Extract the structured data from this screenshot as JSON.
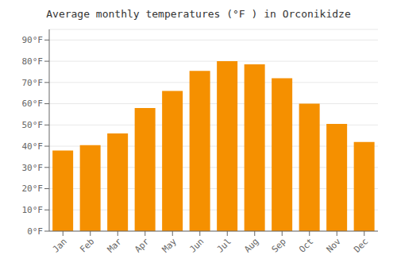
{
  "chart_data": {
    "type": "bar",
    "title": "Average monthly temperatures (°F ) in Orconikidze",
    "categories": [
      "Jan",
      "Feb",
      "Mar",
      "Apr",
      "May",
      "Jun",
      "Jul",
      "Aug",
      "Sep",
      "Oct",
      "Nov",
      "Dec"
    ],
    "values": [
      38,
      40.5,
      46,
      58,
      66,
      75.5,
      80,
      78.5,
      72,
      60,
      50.5,
      42
    ],
    "color": "#F59000",
    "ylim": [
      0,
      95
    ],
    "yticks": [
      {
        "value": 0,
        "label": "0°F"
      },
      {
        "value": 10,
        "label": "10°F"
      },
      {
        "value": 20,
        "label": "20°F"
      },
      {
        "value": 30,
        "label": "30°F"
      },
      {
        "value": 40,
        "label": "40°F"
      },
      {
        "value": 50,
        "label": "50°F"
      },
      {
        "value": 60,
        "label": "60°F"
      },
      {
        "value": 70,
        "label": "70°F"
      },
      {
        "value": 80,
        "label": "80°F"
      },
      {
        "value": 90,
        "label": "90°F"
      }
    ],
    "grid": true
  }
}
